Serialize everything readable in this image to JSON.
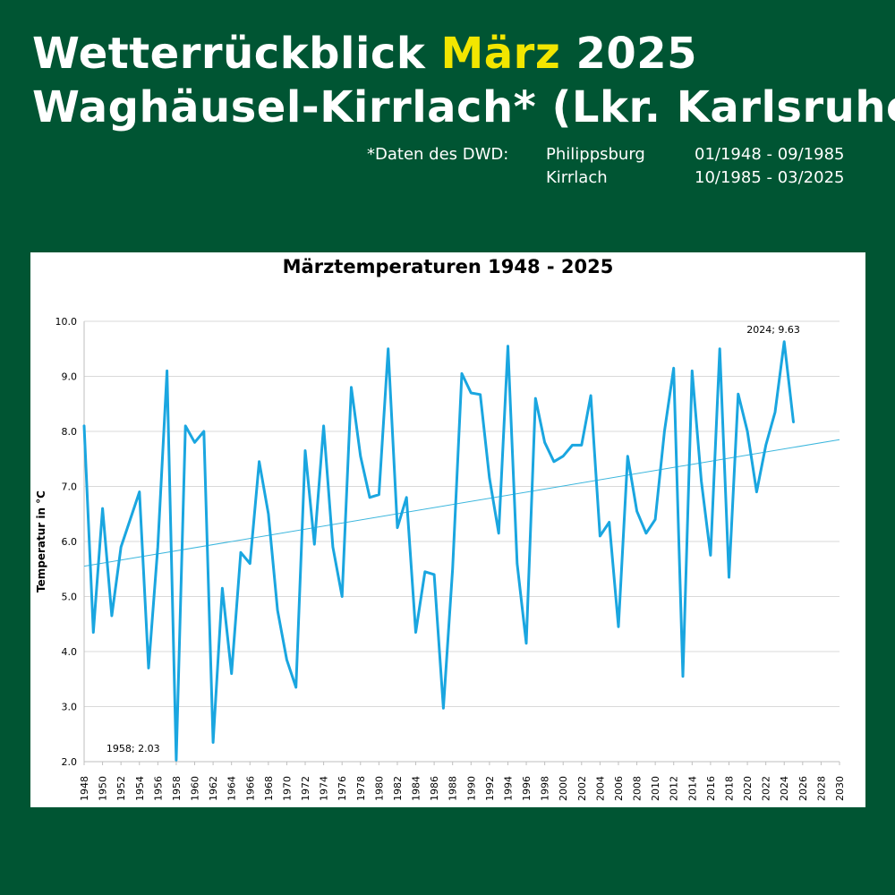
{
  "header": {
    "title_line1_part1": "Wetterrückblick",
    "title_line1_highlight": "März",
    "title_line1_part2": "2025",
    "title_line2": "Waghäusel-Kirrlach* (Lkr. Karlsruhe)",
    "highlight_color": "#f2e600",
    "background_color": "#005533"
  },
  "source": {
    "label": "*Daten des DWD:",
    "stations": [
      {
        "name": "Philippsburg",
        "period": "01/1948 - 09/1985"
      },
      {
        "name": "Kirrlach",
        "period": "10/1985 - 03/2025"
      }
    ]
  },
  "chart_data": {
    "type": "line",
    "title": "Märztemperaturen 1948 - 2025",
    "xlabel": "",
    "ylabel": "Temperatur in °C",
    "xlim": [
      1948,
      2030
    ],
    "ylim": [
      2.0,
      10.0
    ],
    "x_ticks": [
      1948,
      1950,
      1952,
      1954,
      1956,
      1958,
      1960,
      1962,
      1964,
      1966,
      1968,
      1970,
      1972,
      1974,
      1976,
      1978,
      1980,
      1982,
      1984,
      1986,
      1988,
      1990,
      1992,
      1994,
      1996,
      1998,
      2000,
      2002,
      2004,
      2006,
      2008,
      2010,
      2012,
      2014,
      2016,
      2018,
      2020,
      2022,
      2024,
      2026,
      2028,
      2030
    ],
    "y_ticks": [
      "2.0",
      "3.0",
      "4.0",
      "5.0",
      "6.0",
      "7.0",
      "8.0",
      "9.0",
      "10.0"
    ],
    "grid": true,
    "line_color": "#1aa6e0",
    "trend_color": "#3bb6dd",
    "x": [
      1948,
      1949,
      1950,
      1951,
      1952,
      1953,
      1954,
      1955,
      1956,
      1957,
      1958,
      1959,
      1960,
      1961,
      1962,
      1963,
      1964,
      1965,
      1966,
      1967,
      1968,
      1969,
      1970,
      1971,
      1972,
      1973,
      1974,
      1975,
      1976,
      1977,
      1978,
      1979,
      1980,
      1981,
      1982,
      1983,
      1984,
      1985,
      1986,
      1987,
      1988,
      1989,
      1990,
      1991,
      1992,
      1993,
      1994,
      1995,
      1996,
      1997,
      1998,
      1999,
      2000,
      2001,
      2002,
      2003,
      2004,
      2005,
      2006,
      2007,
      2008,
      2009,
      2010,
      2011,
      2012,
      2013,
      2014,
      2015,
      2016,
      2017,
      2018,
      2019,
      2020,
      2021,
      2022,
      2023,
      2024,
      2025
    ],
    "series": [
      {
        "values": [
          8.1,
          4.35,
          6.6,
          4.65,
          5.9,
          6.4,
          6.9,
          3.7,
          5.9,
          9.1,
          2.03,
          8.1,
          7.8,
          8.0,
          2.35,
          5.15,
          3.6,
          5.8,
          5.6,
          7.45,
          6.5,
          4.75,
          3.85,
          3.35,
          7.65,
          5.95,
          8.1,
          5.9,
          5.0,
          8.8,
          7.55,
          6.8,
          6.85,
          9.5,
          6.25,
          6.8,
          4.35,
          5.45,
          5.4,
          2.97,
          5.5,
          9.05,
          8.7,
          8.67,
          7.15,
          6.15,
          9.55,
          5.6,
          4.15,
          8.6,
          7.8,
          7.45,
          7.55,
          7.75,
          7.75,
          8.65,
          6.1,
          6.35,
          4.45,
          7.55,
          6.55,
          6.15,
          6.4,
          8.0,
          9.15,
          3.55,
          9.1,
          7.1,
          5.75,
          9.5,
          5.35,
          8.68,
          8.0,
          6.9,
          7.75,
          8.35,
          9.63,
          8.17
        ]
      },
      {
        "name": "",
        "type": "trend",
        "x": [
          1948,
          2030
        ],
        "values": [
          5.55,
          7.85
        ]
      }
    ],
    "annotations": [
      {
        "text": "1958; 2.03",
        "x": 1958,
        "y": 2.03
      },
      {
        "text": "2024; 9.63",
        "x": 2024,
        "y": 9.63
      }
    ]
  }
}
